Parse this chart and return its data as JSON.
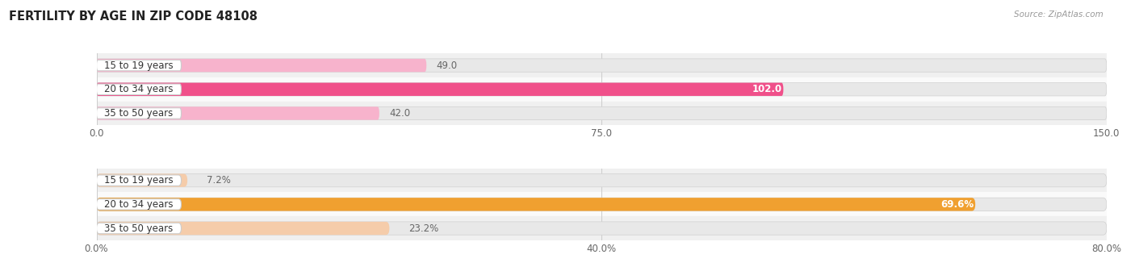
{
  "title": "FERTILITY BY AGE IN ZIP CODE 48108",
  "source": "Source: ZipAtlas.com",
  "top_chart": {
    "categories": [
      "15 to 19 years",
      "20 to 34 years",
      "35 to 50 years"
    ],
    "values": [
      49.0,
      102.0,
      42.0
    ],
    "xlim": [
      0,
      150
    ],
    "xticks": [
      0.0,
      75.0,
      150.0
    ],
    "xtick_labels": [
      "0.0",
      "75.0",
      "150.0"
    ],
    "bar_colors": [
      "#f7b3cc",
      "#f0508a",
      "#f7b3cc"
    ],
    "bar_bg_color": "#e8e8e8",
    "label_inside": [
      false,
      true,
      false
    ],
    "label_color_inside": "#ffffff",
    "label_color_outside": "#666666"
  },
  "bottom_chart": {
    "categories": [
      "15 to 19 years",
      "20 to 34 years",
      "35 to 50 years"
    ],
    "values": [
      7.2,
      69.6,
      23.2
    ],
    "xlim": [
      0,
      80
    ],
    "xticks": [
      0.0,
      40.0,
      80.0
    ],
    "xtick_labels": [
      "0.0%",
      "40.0%",
      "80.0%"
    ],
    "bar_colors": [
      "#f5ccaa",
      "#f0a030",
      "#f5ccaa"
    ],
    "bar_bg_color": "#e8e8e8",
    "label_inside": [
      false,
      true,
      false
    ],
    "label_color_inside": "#ffffff",
    "label_color_outside": "#666666",
    "value_suffix": "%"
  },
  "label_fontsize": 8.5,
  "tick_fontsize": 8.5,
  "title_fontsize": 10.5,
  "source_fontsize": 7.5,
  "category_fontsize": 8.5,
  "bar_height": 0.55,
  "background_color": "#ffffff",
  "row_bg_even": "#f0f0f0",
  "row_bg_odd": "#fafafa",
  "separator_color": "#cccccc",
  "pill_bg": "#ffffff",
  "pill_border": "#dddddd"
}
